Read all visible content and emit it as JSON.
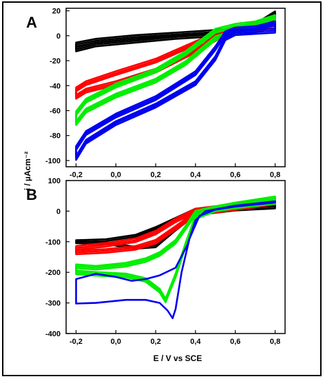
{
  "chart_data": [
    {
      "type": "line",
      "panel_label": "A",
      "ylabel": "i / µAcm⁻²",
      "xlabel": "",
      "xlim": [
        -0.25,
        0.85
      ],
      "ylim": [
        -105,
        22
      ],
      "x_ticks": [
        "-0,2",
        "0,0",
        "0,2",
        "0,4",
        "0,6",
        "0,8"
      ],
      "x_tick_values": [
        -0.2,
        0.0,
        0.2,
        0.4,
        0.6,
        0.8
      ],
      "y_ticks": [
        "20",
        "0",
        "-20",
        "-40",
        "-60",
        "-80",
        "-100"
      ],
      "y_tick_values": [
        20,
        0,
        -20,
        -40,
        -60,
        -80,
        -100
      ],
      "series": [
        {
          "color": "#000000",
          "cycles": 3,
          "lower": [
            [
              -0.2,
              -11
            ],
            [
              -0.1,
              -7
            ],
            [
              0.1,
              -4
            ],
            [
              0.3,
              -1
            ],
            [
              0.5,
              1
            ],
            [
              0.7,
              4
            ],
            [
              0.8,
              10
            ]
          ],
          "upper": [
            [
              -0.2,
              -7
            ],
            [
              -0.1,
              -4
            ],
            [
              0.1,
              -1
            ],
            [
              0.3,
              1
            ],
            [
              0.5,
              3
            ],
            [
              0.7,
              8
            ],
            [
              0.8,
              18
            ]
          ]
        },
        {
          "color": "#ff0000",
          "cycles": 3,
          "lower": [
            [
              -0.2,
              -49
            ],
            [
              -0.15,
              -44
            ],
            [
              0.0,
              -38
            ],
            [
              0.2,
              -28
            ],
            [
              0.4,
              -12
            ],
            [
              0.55,
              2
            ],
            [
              0.7,
              5
            ],
            [
              0.8,
              8
            ]
          ],
          "upper": [
            [
              -0.2,
              -43
            ],
            [
              -0.15,
              -38
            ],
            [
              0.0,
              -30
            ],
            [
              0.2,
              -20
            ],
            [
              0.4,
              -6
            ],
            [
              0.55,
              4
            ],
            [
              0.7,
              9
            ],
            [
              0.8,
              14
            ]
          ]
        },
        {
          "color": "#00ee00",
          "cycles": 3,
          "lower": [
            [
              -0.2,
              -70
            ],
            [
              -0.15,
              -60
            ],
            [
              0.0,
              -48
            ],
            [
              0.2,
              -36
            ],
            [
              0.35,
              -22
            ],
            [
              0.5,
              -2
            ],
            [
              0.6,
              3
            ],
            [
              0.7,
              6
            ],
            [
              0.8,
              10
            ]
          ],
          "upper": [
            [
              -0.2,
              -62
            ],
            [
              -0.15,
              -52
            ],
            [
              0.0,
              -40
            ],
            [
              0.2,
              -28
            ],
            [
              0.35,
              -14
            ],
            [
              0.5,
              4
            ],
            [
              0.6,
              8
            ],
            [
              0.7,
              10
            ],
            [
              0.8,
              15
            ]
          ]
        },
        {
          "color": "#0000ee",
          "cycles": 3,
          "lower": [
            [
              -0.2,
              -98
            ],
            [
              -0.15,
              -85
            ],
            [
              0.0,
              -70
            ],
            [
              0.2,
              -56
            ],
            [
              0.4,
              -38
            ],
            [
              0.5,
              -18
            ],
            [
              0.55,
              -2
            ],
            [
              0.6,
              2
            ],
            [
              0.7,
              3
            ],
            [
              0.8,
              4
            ]
          ],
          "upper": [
            [
              -0.2,
              -90
            ],
            [
              -0.15,
              -78
            ],
            [
              0.0,
              -64
            ],
            [
              0.2,
              -50
            ],
            [
              0.4,
              -30
            ],
            [
              0.5,
              -10
            ],
            [
              0.55,
              2
            ],
            [
              0.6,
              5
            ],
            [
              0.7,
              6
            ],
            [
              0.8,
              10
            ]
          ]
        }
      ]
    },
    {
      "type": "line",
      "panel_label": "B",
      "ylabel": "i / µAcm⁻²",
      "xlabel": "E / V vs SCE",
      "xlim": [
        -0.25,
        0.85
      ],
      "ylim": [
        -400,
        100
      ],
      "x_ticks": [
        "-0,2",
        "0,0",
        "0,2",
        "0,4",
        "0,6",
        "0,8"
      ],
      "x_tick_values": [
        -0.2,
        0.0,
        0.2,
        0.4,
        0.6,
        0.8
      ],
      "y_ticks": [
        "100",
        "0",
        "-100",
        "-200",
        "-300",
        "-400"
      ],
      "y_tick_values": [
        100,
        0,
        -100,
        -200,
        -300,
        -400
      ],
      "series": [
        {
          "color": "#000000",
          "cycles": 2,
          "lower": [
            [
              -0.2,
              -102
            ],
            [
              -0.05,
              -105
            ],
            [
              0.1,
              -120
            ],
            [
              0.2,
              -115
            ],
            [
              0.3,
              -60
            ],
            [
              0.4,
              -10
            ],
            [
              0.6,
              5
            ],
            [
              0.8,
              12
            ]
          ],
          "upper": [
            [
              -0.2,
              -98
            ],
            [
              -0.05,
              -95
            ],
            [
              0.1,
              -80
            ],
            [
              0.2,
              -55
            ],
            [
              0.3,
              -25
            ],
            [
              0.4,
              5
            ],
            [
              0.6,
              15
            ],
            [
              0.8,
              20
            ]
          ]
        },
        {
          "color": "#ff0000",
          "cycles": 3,
          "lower": [
            [
              -0.2,
              -135
            ],
            [
              -0.05,
              -130
            ],
            [
              0.1,
              -120
            ],
            [
              0.2,
              -100
            ],
            [
              0.3,
              -55
            ],
            [
              0.4,
              -8
            ],
            [
              0.6,
              10
            ],
            [
              0.8,
              28
            ]
          ],
          "upper": [
            [
              -0.2,
              -120
            ],
            [
              -0.05,
              -110
            ],
            [
              0.1,
              -95
            ],
            [
              0.2,
              -70
            ],
            [
              0.3,
              -30
            ],
            [
              0.4,
              2
            ],
            [
              0.6,
              18
            ],
            [
              0.8,
              35
            ]
          ]
        },
        {
          "color": "#00ee00",
          "cycles": 3,
          "lower": [
            [
              -0.2,
              -200
            ],
            [
              -0.1,
              -205
            ],
            [
              0.05,
              -210
            ],
            [
              0.15,
              -225
            ],
            [
              0.22,
              -260
            ],
            [
              0.25,
              -292
            ],
            [
              0.3,
              -210
            ],
            [
              0.35,
              -110
            ],
            [
              0.4,
              -20
            ],
            [
              0.5,
              5
            ],
            [
              0.6,
              15
            ],
            [
              0.8,
              30
            ]
          ],
          "upper": [
            [
              -0.2,
              -180
            ],
            [
              -0.1,
              -185
            ],
            [
              0.05,
              -175
            ],
            [
              0.15,
              -160
            ],
            [
              0.22,
              -140
            ],
            [
              0.3,
              -100
            ],
            [
              0.36,
              -45
            ],
            [
              0.4,
              -5
            ],
            [
              0.5,
              10
            ],
            [
              0.6,
              22
            ],
            [
              0.8,
              42
            ]
          ]
        },
        {
          "color": "#0000ee",
          "cycles": 1,
          "lower": [
            [
              -0.2,
              -302
            ],
            [
              -0.1,
              -300
            ],
            [
              0.05,
              -290
            ],
            [
              0.15,
              -290
            ],
            [
              0.22,
              -300
            ],
            [
              0.26,
              -325
            ],
            [
              0.285,
              -350
            ],
            [
              0.3,
              -320
            ],
            [
              0.33,
              -200
            ],
            [
              0.37,
              -90
            ],
            [
              0.42,
              -15
            ],
            [
              0.5,
              5
            ],
            [
              0.6,
              15
            ],
            [
              0.8,
              28
            ]
          ],
          "upper": [
            [
              -0.2,
              -222
            ],
            [
              -0.1,
              -205
            ],
            [
              0.0,
              -215
            ],
            [
              0.08,
              -228
            ],
            [
              0.15,
              -222
            ],
            [
              0.22,
              -210
            ],
            [
              0.3,
              -185
            ],
            [
              0.36,
              -110
            ],
            [
              0.4,
              -30
            ],
            [
              0.45,
              0
            ],
            [
              0.6,
              18
            ],
            [
              0.8,
              32
            ]
          ]
        }
      ]
    }
  ]
}
